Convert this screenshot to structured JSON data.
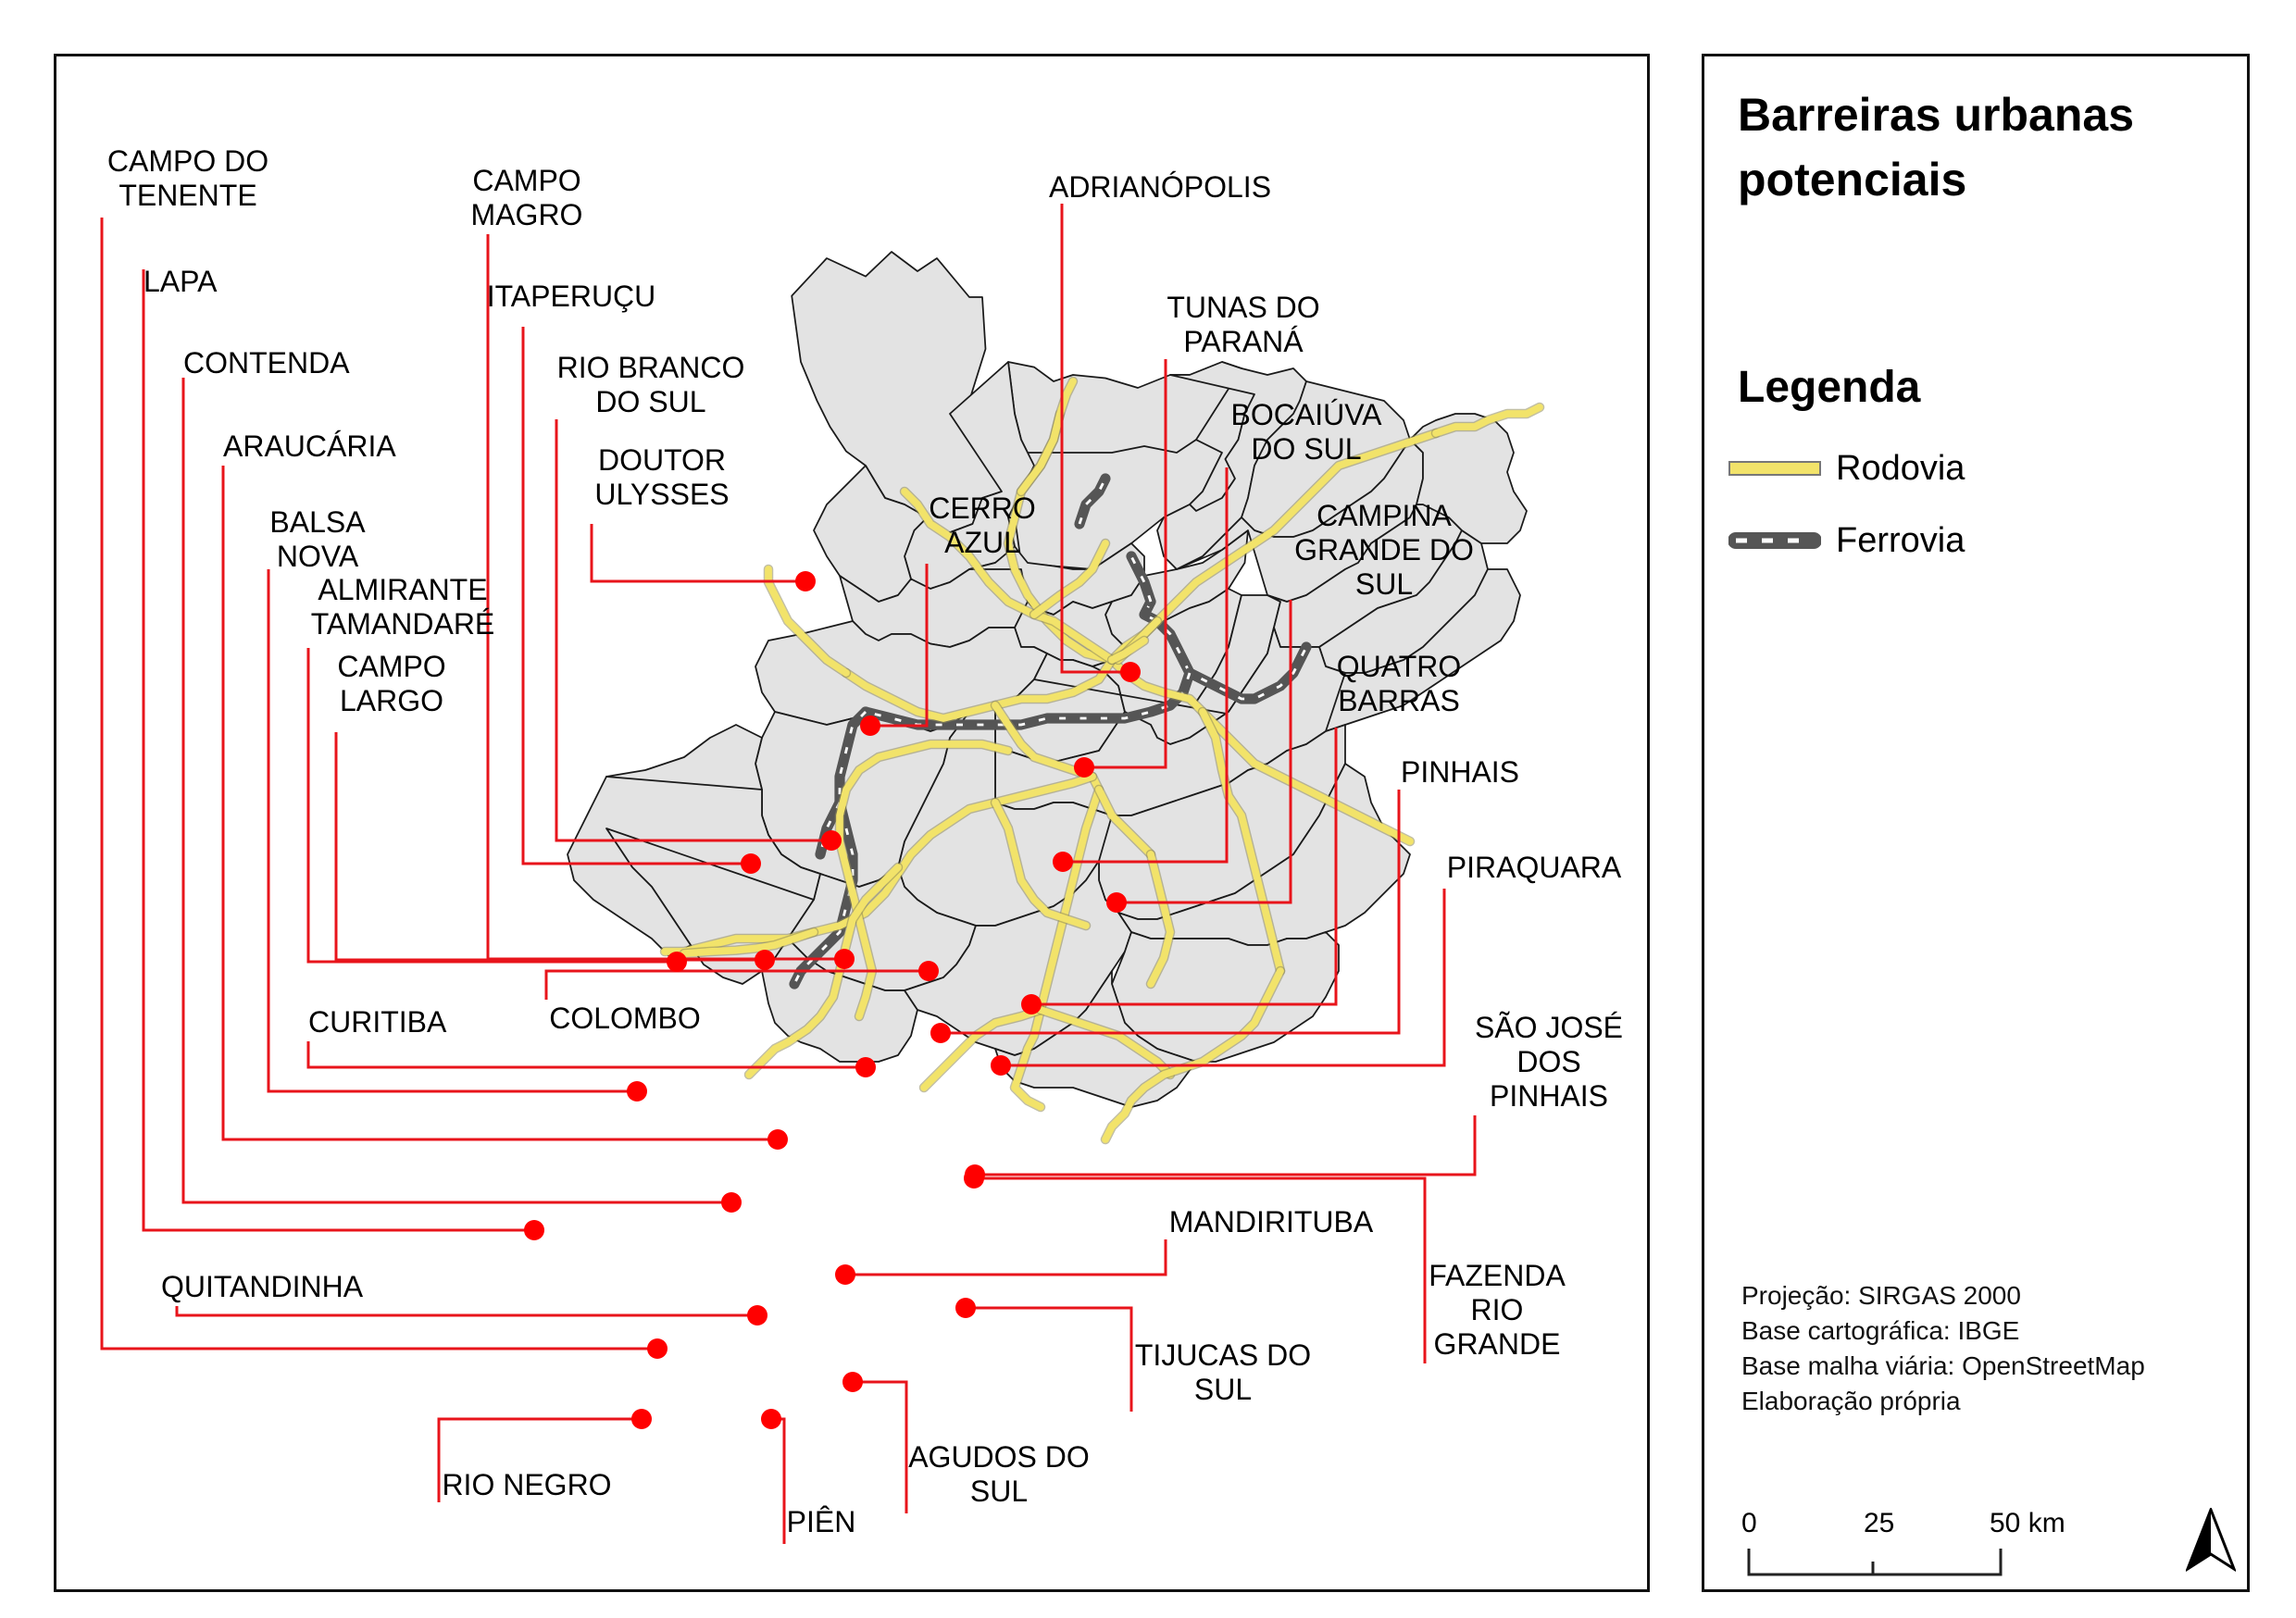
{
  "legend": {
    "title": "Barreiras urbanas potenciais",
    "heading": "Legenda",
    "items": [
      {
        "label": "Rodovia",
        "color": "#f2e36a",
        "icon": "yellow-road-line"
      },
      {
        "label": "Ferrovia",
        "color": "#555555",
        "icon": "dashed-rail-line"
      }
    ],
    "credits": [
      "Projeção: SIRGAS 2000",
      "Base cartográfica: IBGE",
      "Base malha viária: OpenStreetMap",
      "Elaboração própria"
    ],
    "scale": {
      "ticks": [
        "0",
        "25",
        "50 km"
      ]
    },
    "north_icon": "north-arrow-icon"
  },
  "colors": {
    "region_fill": "#e3e3e3",
    "region_stroke": "#1a1a1a",
    "leader": "#e8141b",
    "dot": "#ff0000",
    "road": "#f2e36a",
    "rail": "#555555"
  },
  "municipalities": [
    {
      "name": [
        "CAMPO DO",
        "TENENTE"
      ]
    },
    {
      "name": [
        "LAPA"
      ]
    },
    {
      "name": [
        "CONTENDA"
      ]
    },
    {
      "name": [
        "ARAUCÁRIA"
      ]
    },
    {
      "name": [
        "BALSA",
        "NOVA"
      ]
    },
    {
      "name": [
        "ALMIRANTE",
        "TAMANDARÉ"
      ]
    },
    {
      "name": [
        "CAMPO",
        "LARGO"
      ]
    },
    {
      "name": [
        "CAMPO",
        "MAGRO"
      ]
    },
    {
      "name": [
        "ITAPERUÇU"
      ]
    },
    {
      "name": [
        "RIO BRANCO",
        "DO SUL"
      ]
    },
    {
      "name": [
        "DOUTOR",
        "ULYSSES"
      ]
    },
    {
      "name": [
        "CERRO",
        "AZUL"
      ]
    },
    {
      "name": [
        "ADRIANÓPOLIS"
      ]
    },
    {
      "name": [
        "TUNAS DO",
        "PARANÁ"
      ]
    },
    {
      "name": [
        "BOCAIÚVA",
        "DO SUL"
      ]
    },
    {
      "name": [
        "CAMPINA",
        "GRANDE DO",
        "SUL"
      ]
    },
    {
      "name": [
        "QUATRO",
        "BARRAS"
      ]
    },
    {
      "name": [
        "PINHAIS"
      ]
    },
    {
      "name": [
        "PIRAQUARA"
      ]
    },
    {
      "name": [
        "SÃO JOSÉ",
        "DOS",
        "PINHAIS"
      ]
    },
    {
      "name": [
        "COLOMBO"
      ]
    },
    {
      "name": [
        "CURITIBA"
      ]
    },
    {
      "name": [
        "MANDIRITUBA"
      ]
    },
    {
      "name": [
        "FAZENDA",
        "RIO",
        "GRANDE"
      ]
    },
    {
      "name": [
        "TIJUCAS DO",
        "SUL"
      ]
    },
    {
      "name": [
        "AGUDOS DO",
        "SUL"
      ]
    },
    {
      "name": [
        "PIÊN"
      ]
    },
    {
      "name": [
        "RIO NEGRO"
      ]
    },
    {
      "name": [
        "QUITANDINHA"
      ]
    }
  ]
}
